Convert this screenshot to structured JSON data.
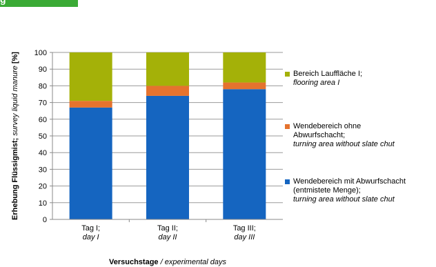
{
  "header_tab": {
    "text": "g",
    "color": "#3aaa35"
  },
  "chart_data": {
    "type": "bar",
    "stacked": true,
    "categories": [
      {
        "line1": "Tag I;",
        "line2": "day I"
      },
      {
        "line1": "Tag II;",
        "line2": "day II"
      },
      {
        "line1": "Tag III;",
        "line2": "day III"
      }
    ],
    "series": [
      {
        "name": "Wendebereich mit Abwurfschacht (entmistete Menge); turning area without slate chut",
        "legend_lines": [
          "Wendebereich mit Abwurfschacht",
          "(entmistete Menge);",
          "turning area without slate chut"
        ],
        "legend_italic": [
          false,
          false,
          true
        ],
        "color": "#1565c0",
        "values": [
          67,
          74,
          78
        ]
      },
      {
        "name": "Wendebereich ohne Abwurfschacht; turning area without slate chut",
        "legend_lines": [
          "Wendebereich ohne",
          "Abwurfschacht;",
          "turning area  without slate chut"
        ],
        "legend_italic": [
          false,
          false,
          true
        ],
        "color": "#e5732e",
        "values": [
          4,
          6,
          4
        ]
      },
      {
        "name": "Bereich Lauffläche I; flooring area I",
        "legend_lines": [
          "Bereich Lauffläche I;",
          "flooring area I"
        ],
        "legend_italic": [
          false,
          true
        ],
        "color": "#a4b108",
        "values": [
          29,
          20,
          18
        ]
      }
    ],
    "ylim": [
      0,
      100
    ],
    "yticks": [
      0,
      10,
      20,
      30,
      40,
      50,
      60,
      70,
      80,
      90,
      100
    ],
    "grid": true,
    "legend_position": "right",
    "ylabel": {
      "bold": "Erhebung Flüssigmist;",
      "italic": "survey liquid manure",
      "unit": "[%]"
    },
    "xlabel": {
      "bold": "Versuchstage",
      "italic": "/ experimental days"
    }
  }
}
